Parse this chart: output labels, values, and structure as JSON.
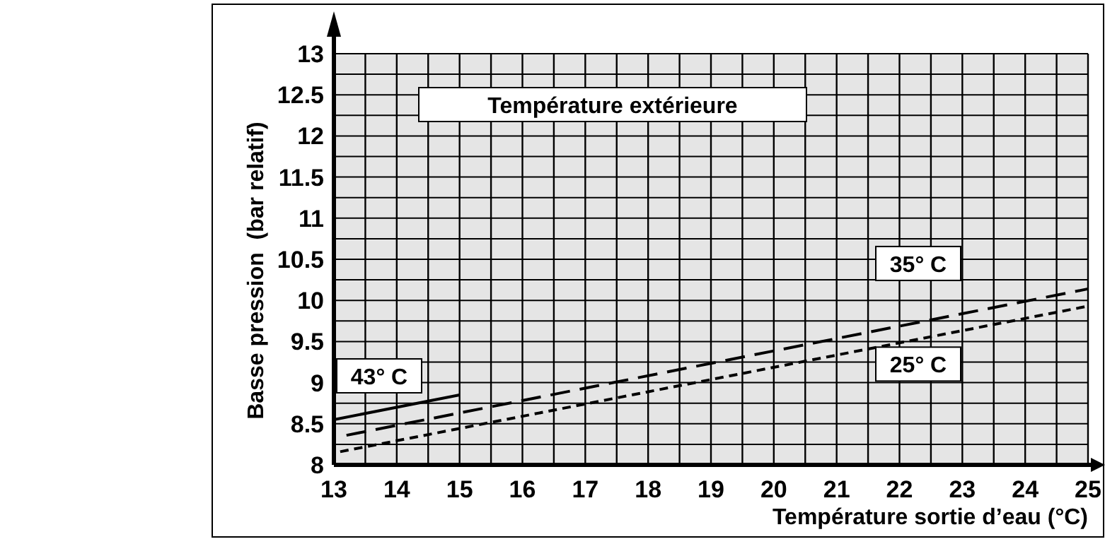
{
  "chart_data": {
    "type": "line",
    "legend_title": "Température extérieure",
    "xlabel": "Température sortie d’eau (°C)",
    "ylabel": "Basse pression  (bar relatif)",
    "xlim": [
      13,
      25
    ],
    "ylim": [
      8,
      13
    ],
    "xticks": [
      13,
      {
        "value": 13.5,
        "label": null
      },
      14,
      {
        "value": 14.5,
        "label": null
      },
      15,
      {
        "value": 15.5,
        "label": null
      },
      16,
      {
        "value": 16.5,
        "label": null
      },
      17,
      {
        "value": 17.5,
        "label": null
      },
      18,
      {
        "value": 18.5,
        "label": null
      },
      19,
      {
        "value": 19.5,
        "label": null
      },
      20,
      {
        "value": 20.5,
        "label": null
      },
      21,
      {
        "value": 21.5,
        "label": null
      },
      22,
      {
        "value": 22.5,
        "label": null
      },
      23,
      {
        "value": 23.5,
        "label": null
      },
      24,
      {
        "value": 24.5,
        "label": null
      },
      25
    ],
    "yticks": [
      8,
      {
        "value": 8.25,
        "label": null
      },
      8.5,
      {
        "value": 8.75,
        "label": null
      },
      9,
      {
        "value": 9.25,
        "label": null
      },
      9.5,
      {
        "value": 9.75,
        "label": null
      },
      10,
      {
        "value": 10.25,
        "label": null
      },
      10.5,
      {
        "value": 10.75,
        "label": null
      },
      11,
      {
        "value": 11.25,
        "label": null
      },
      11.5,
      {
        "value": 11.75,
        "label": null
      },
      12,
      {
        "value": 12.25,
        "label": null
      },
      12.5,
      {
        "value": 12.75,
        "label": null
      },
      13
    ],
    "grid": true,
    "series": [
      {
        "name": "43° C",
        "color": "#000000",
        "line_style": "solid",
        "x": [
          13,
          15
        ],
        "values": [
          8.55,
          8.85
        ]
      },
      {
        "name": "35° C",
        "color": "#000000",
        "line_style": "dashed",
        "x": [
          13.2,
          25
        ],
        "values": [
          8.36,
          10.14
        ]
      },
      {
        "name": "25° C",
        "color": "#000000",
        "line_style": "dotted",
        "x": [
          13.1,
          25
        ],
        "values": [
          8.16,
          9.93
        ]
      }
    ]
  }
}
